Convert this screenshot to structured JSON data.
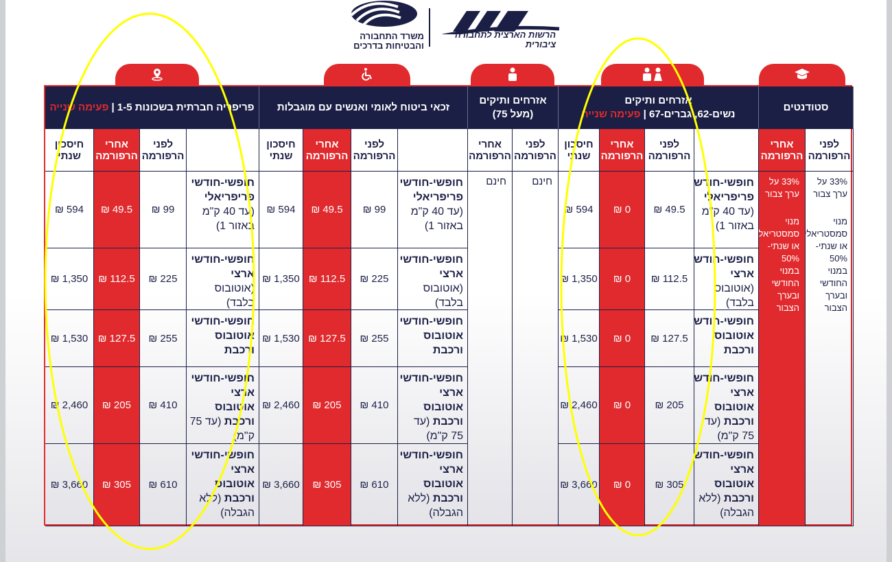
{
  "logos": {
    "ministry": "משרד התחבורה והבטיחות בדרכים",
    "authority": "הרשות הארצית לתחבורה ציבורית"
  },
  "colors": {
    "navy": "#1b1f45",
    "red": "#e02a2e",
    "highlight": "#ffff00"
  },
  "column_headers": {
    "before": "לפני הרפורמה",
    "after": "אחרי הרפורמה",
    "savings": "חיסכון שנתי"
  },
  "row_labels": [
    {
      "bold": "חופשי-חודשי פריפריאלי",
      "normal": "(עד 40 ק\"מ באזור 1)"
    },
    {
      "bold": "חופשי-חודשי ארצי",
      "normal": "(אוטובוס בלבד)"
    },
    {
      "bold": "חופשי-חודשי אוטובוס ורכבת",
      "normal": ""
    },
    {
      "bold": "חופשי-חודשי ארצי אוטובוס ורכבת",
      "normal": "(עד 75 ק\"מ)"
    },
    {
      "bold": "חופשי-חודשי ארצי אוטובוס ורכבת",
      "normal": "(ללא הגבלה)"
    }
  ],
  "groups": [
    {
      "icon": "location-pin-icon",
      "title": "פריפריה חברתית בשכונות 1-5",
      "phase": "פעימה שנייה",
      "before": [
        "₪ 99",
        "₪ 225",
        "₪ 255",
        "₪ 410",
        "₪ 610"
      ],
      "after": [
        "₪ 49.5",
        "₪ 112.5",
        "₪ 127.5",
        "₪ 205",
        "₪ 305"
      ],
      "savings": [
        "₪ 594",
        "₪ 1,350",
        "₪ 1,530",
        "₪ 2,460",
        "₪ 3,660"
      ]
    },
    {
      "icon": "wheelchair-icon",
      "title": "זכאי ביטוח לאומי ואנשים עם מוגבלות",
      "phase": "",
      "before": [
        "₪ 99",
        "₪ 225",
        "₪ 255",
        "₪ 410",
        "₪ 610"
      ],
      "after": [
        "₪ 49.5",
        "₪ 112.5",
        "₪ 127.5",
        "₪ 205",
        "₪ 305"
      ],
      "savings": [
        "₪ 594",
        "₪ 1,350",
        "₪ 1,530",
        "₪ 2,460",
        "₪ 3,660"
      ]
    },
    {
      "icon": "senior-person-icon",
      "title": "אזרחים ותיקים",
      "subtitle": "(מעל 75)",
      "before_all": "חינם",
      "after_all": "חינם"
    },
    {
      "icon": "senior-couple-icon",
      "title": "אזרחים ותיקים",
      "subtitle": "נשים-62, גברים-67",
      "phase": "פעימה שנייה",
      "before": [
        "₪ 49.5",
        "₪ 112.5",
        "₪ 127.5",
        "₪ 205",
        "₪ 305"
      ],
      "after": [
        "₪ 0",
        "₪ 0",
        "₪ 0",
        "₪ 0",
        "₪ 0"
      ],
      "savings": [
        "₪ 594",
        "₪ 1,350",
        "₪ 1,530",
        "₪ 2,460",
        "₪ 3,660"
      ]
    },
    {
      "icon": "graduation-cap-icon",
      "title": "סטודנטים",
      "before_note": [
        "33% על ערך צבור",
        "מנוי סמסטריאלי או שנתי- 50% במנוי החודשי ובערך הצבור"
      ],
      "after_note": [
        "33% על ערך צבור",
        "מנוי סמסטריאלי או שנתי- 50% במנוי החודשי ובערך הצבור"
      ]
    }
  ]
}
